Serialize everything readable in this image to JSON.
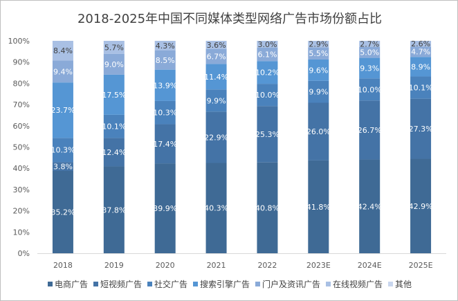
{
  "chart_data": {
    "type": "bar",
    "stacked": "percent",
    "title": "2018-2025年中国不同媒体类型网络广告市场份额占比",
    "categories": [
      "2018",
      "2019",
      "2020",
      "2021",
      "2022",
      "2023E",
      "2024E",
      "2025E"
    ],
    "ylim": [
      0,
      100
    ],
    "yticks": [
      "0%",
      "10%",
      "20%",
      "30%",
      "40%",
      "50%",
      "60%",
      "70%",
      "80%",
      "90%",
      "100%"
    ],
    "grid": false,
    "legend_position": "bottom",
    "series": [
      {
        "name": "电商广告",
        "color": "#3F6A95",
        "values": [
          35.2,
          37.8,
          39.9,
          40.3,
          40.8,
          41.8,
          42.4,
          42.9
        ]
      },
      {
        "name": "短视频广告",
        "color": "#4473A6",
        "values": [
          3.8,
          12.4,
          17.4,
          22.9,
          25.3,
          26.0,
          26.7,
          27.3
        ]
      },
      {
        "name": "社交广告",
        "color": "#4A82BC",
        "values": [
          10.3,
          10.1,
          10.3,
          9.9,
          10.0,
          9.9,
          10.0,
          10.1
        ]
      },
      {
        "name": "搜索引擎广告",
        "color": "#5596D4",
        "values": [
          23.7,
          17.5,
          13.9,
          11.4,
          10.2,
          9.6,
          9.3,
          8.9
        ]
      },
      {
        "name": "门户及资讯广告",
        "color": "#8AAAD8",
        "values": [
          9.4,
          9.0,
          8.5,
          6.7,
          6.1,
          5.5,
          5.0,
          4.7
        ]
      },
      {
        "name": "在线视频广告",
        "color": "#A9C0E4",
        "values": [
          8.4,
          5.7,
          4.3,
          3.6,
          3.0,
          2.9,
          2.7,
          2.6
        ]
      },
      {
        "name": "其他",
        "color": "#C9D6EE",
        "values": [
          0,
          0,
          0,
          0,
          0,
          0,
          0,
          0
        ]
      }
    ]
  }
}
